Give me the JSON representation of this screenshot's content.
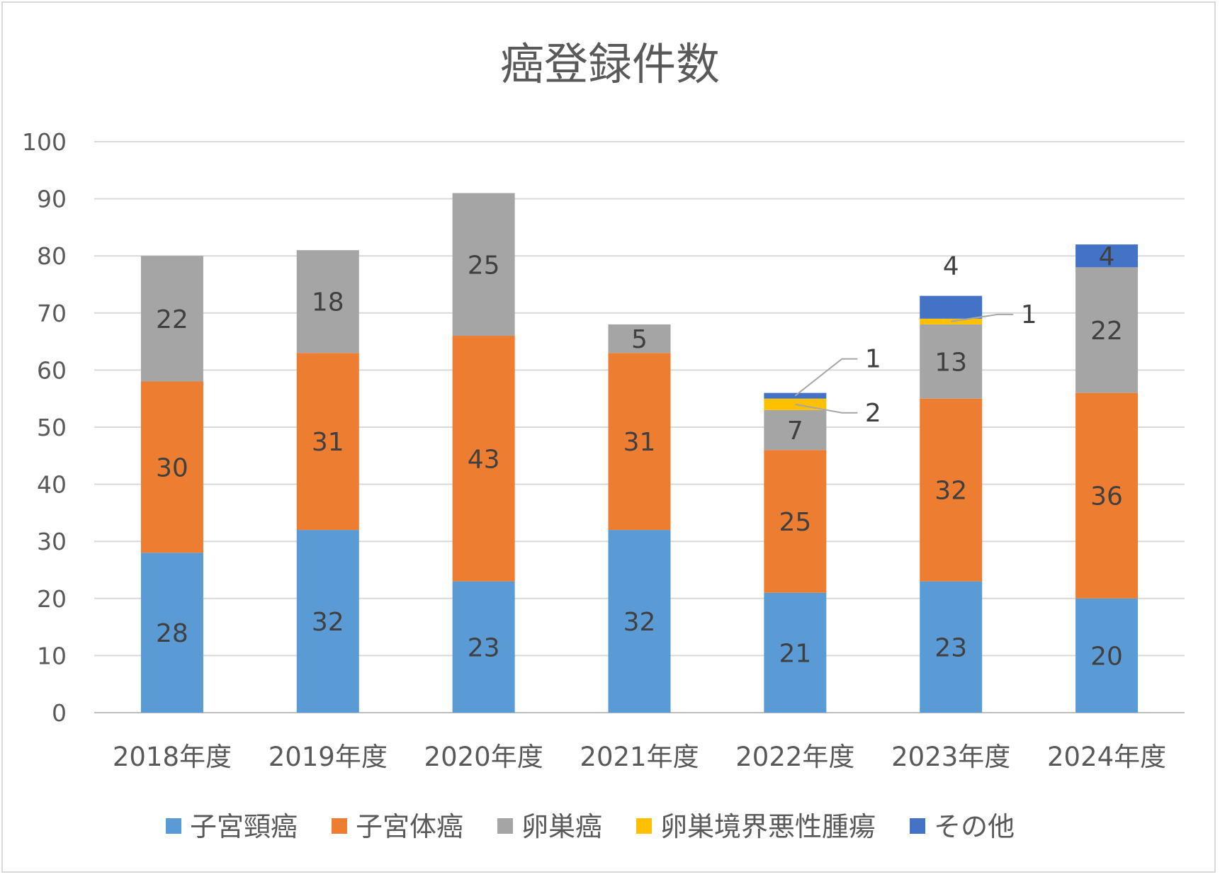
{
  "chart_data": {
    "type": "bar",
    "stacked": true,
    "title": "癌登録件数",
    "categories": [
      "2018年度",
      "2019年度",
      "2020年度",
      "2021年度",
      "2022年度",
      "2023年度",
      "2024年度"
    ],
    "ylim": [
      0,
      100
    ],
    "yticks": [
      "0",
      "10",
      "20",
      "30",
      "40",
      "50",
      "60",
      "70",
      "80",
      "90",
      "100"
    ],
    "grid": true,
    "legend_position": "bottom",
    "series": [
      {
        "name": "子宮頸癌",
        "color": "#5B9BD5",
        "values": [
          28,
          32,
          23,
          32,
          21,
          23,
          20
        ]
      },
      {
        "name": "子宮体癌",
        "color": "#ED7D31",
        "values": [
          30,
          31,
          43,
          31,
          25,
          32,
          36
        ]
      },
      {
        "name": "卵巣癌",
        "color": "#A5A5A5",
        "values": [
          22,
          18,
          25,
          5,
          7,
          13,
          22
        ]
      },
      {
        "name": "卵巣境界悪性腫瘍",
        "color": "#FFC000",
        "values": [
          0,
          0,
          0,
          0,
          2,
          1,
          0
        ]
      },
      {
        "name": "その他",
        "color": "#4472C4",
        "values": [
          0,
          0,
          0,
          0,
          1,
          4,
          4
        ]
      }
    ]
  }
}
